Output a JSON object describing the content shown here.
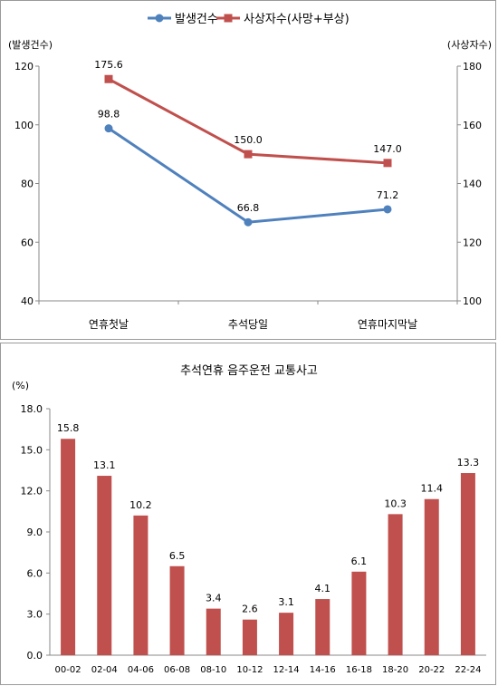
{
  "chart_data": [
    {
      "type": "line",
      "categories": [
        "연휴첫날",
        "추석당일",
        "연휴마지막날"
      ],
      "series": [
        {
          "name": "발생건수",
          "axis": "left",
          "values": [
            98.8,
            66.8,
            71.2
          ],
          "color": "#4f81bd",
          "marker": "circle"
        },
        {
          "name": "사상자수(사망+부상)",
          "axis": "right",
          "values": [
            175.6,
            150.0,
            147.0
          ],
          "color": "#c0504d",
          "marker": "square"
        }
      ],
      "ylabel_left": "(발생건수)",
      "ylabel_right": "(사상자수)",
      "ylim_left": [
        40,
        120
      ],
      "ylim_right": [
        100,
        180
      ],
      "yticks_left": [
        "40",
        "60",
        "80",
        "100",
        "120"
      ],
      "yticks_right": [
        "100",
        "120",
        "140",
        "160",
        "180"
      ],
      "data_labels": {
        "left": [
          "98.8",
          "66.8",
          "71.2"
        ],
        "right": [
          "175.6",
          "150.0",
          "147.0"
        ]
      },
      "grid": false,
      "legend": "top"
    },
    {
      "type": "bar",
      "title": "추석연휴 음주운전 교통사고",
      "ylabel": "(%)",
      "categories": [
        "00-02",
        "02-04",
        "04-06",
        "06-08",
        "08-10",
        "10-12",
        "12-14",
        "14-16",
        "16-18",
        "18-20",
        "20-22",
        "22-24"
      ],
      "values": [
        15.8,
        13.1,
        10.2,
        6.5,
        3.4,
        2.6,
        3.1,
        4.1,
        6.1,
        10.3,
        11.4,
        13.3
      ],
      "value_labels": [
        "15.8",
        "13.1",
        "10.2",
        "6.5",
        "3.4",
        "2.6",
        "3.1",
        "4.1",
        "6.1",
        "10.3",
        "11.4",
        "13.3"
      ],
      "ylim": [
        0,
        18
      ],
      "yticks": [
        "0.0",
        "3.0",
        "6.0",
        "9.0",
        "12.0",
        "15.0",
        "18.0"
      ],
      "color": "#c0504d",
      "grid": false
    }
  ]
}
